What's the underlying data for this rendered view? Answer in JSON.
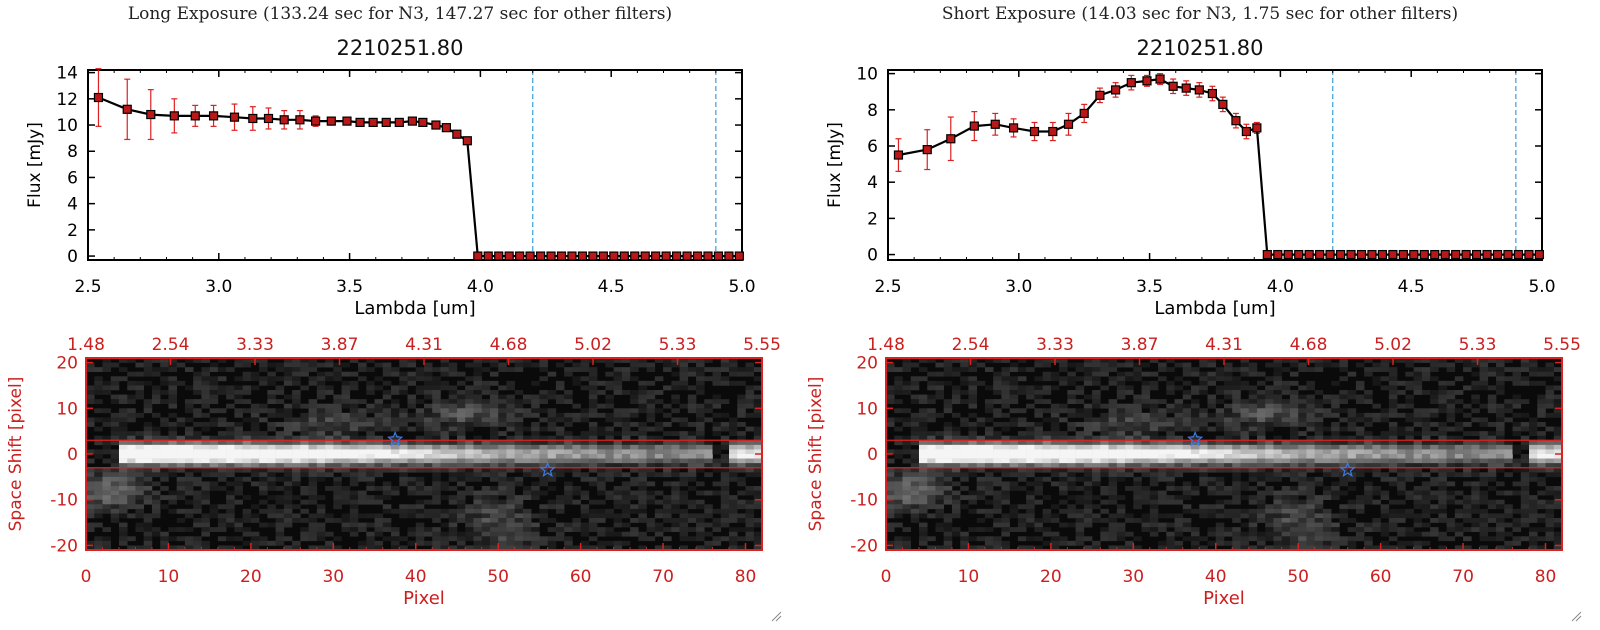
{
  "panels": [
    {
      "exposure_title": "Long Exposure (133.24 sec for N3, 147.27 sec for other filters)",
      "chart_title": "2210251.80"
    },
    {
      "exposure_title": "Short Exposure (14.03 sec for N3, 1.75 sec for other filters)",
      "chart_title": "2210251.80"
    }
  ],
  "colors": {
    "line": "#000000",
    "errorbar": "#dd2020",
    "marker": "#b81818",
    "vline": "#3aa0e0",
    "image_frame": "#dd2020",
    "image_axis_text": "#cc1f1f",
    "star": "#3c7be8"
  },
  "chart_data": [
    {
      "type": "line",
      "title": "2210251.80",
      "xlabel": "Lambda [um]",
      "ylabel": "Flux [mJy]",
      "xlim": [
        2.5,
        5.0
      ],
      "ylim": [
        -0.3,
        14.2
      ],
      "xticks": [
        2.5,
        3.0,
        3.5,
        4.0,
        4.5,
        5.0
      ],
      "xtick_labels": [
        "2.5",
        "3.0",
        "3.5",
        "4.0",
        "4.5",
        "5.0"
      ],
      "yticks": [
        0,
        2,
        4,
        6,
        8,
        10,
        12,
        14
      ],
      "ytick_labels": [
        "0",
        "2",
        "4",
        "6",
        "8",
        "10",
        "12",
        "14"
      ],
      "vlines": [
        4.2,
        4.9
      ],
      "hline_dashed": 0,
      "series": [
        {
          "x": [
            2.54,
            2.65,
            2.74,
            2.83,
            2.91,
            2.98,
            3.06,
            3.13,
            3.19,
            3.25,
            3.31,
            3.37,
            3.43,
            3.49,
            3.54,
            3.59,
            3.64,
            3.69,
            3.74,
            3.78,
            3.83,
            3.87,
            3.91,
            3.95,
            3.99,
            4.03,
            4.07,
            4.11,
            4.15,
            4.19,
            4.23,
            4.27,
            4.31,
            4.35,
            4.39,
            4.43,
            4.47,
            4.51,
            4.55,
            4.59,
            4.63,
            4.67,
            4.71,
            4.75,
            4.79,
            4.83,
            4.87,
            4.91,
            4.95,
            4.99
          ],
          "y": [
            12.1,
            11.2,
            10.8,
            10.7,
            10.7,
            10.7,
            10.6,
            10.5,
            10.5,
            10.4,
            10.4,
            10.3,
            10.3,
            10.3,
            10.2,
            10.2,
            10.2,
            10.2,
            10.3,
            10.2,
            10.0,
            9.8,
            9.3,
            8.8,
            0,
            0,
            0,
            0,
            0,
            0,
            0,
            0,
            0,
            0,
            0,
            0,
            0,
            0,
            0,
            0,
            0,
            0,
            0,
            0,
            0,
            0,
            0,
            0,
            0,
            0
          ],
          "yerr": [
            2.2,
            2.3,
            1.9,
            1.3,
            0.8,
            0.8,
            1.0,
            0.9,
            0.8,
            0.7,
            0.7,
            0.4,
            0.3,
            0.2,
            0.2,
            0.2,
            0.2,
            0.2,
            0.2,
            0.2,
            0.2,
            0.2,
            0.2,
            0.2,
            0,
            0,
            0,
            0,
            0,
            0,
            0,
            0,
            0,
            0,
            0,
            0,
            0,
            0,
            0,
            0,
            0,
            0,
            0,
            0,
            0,
            0,
            0,
            0,
            0,
            0
          ]
        }
      ]
    },
    {
      "type": "line",
      "title": "2210251.80",
      "xlabel": "Lambda [um]",
      "ylabel": "Flux [mJy]",
      "xlim": [
        2.5,
        5.0
      ],
      "ylim": [
        -0.3,
        10.2
      ],
      "xticks": [
        2.5,
        3.0,
        3.5,
        4.0,
        4.5,
        5.0
      ],
      "xtick_labels": [
        "2.5",
        "3.0",
        "3.5",
        "4.0",
        "4.5",
        "5.0"
      ],
      "yticks": [
        0,
        2,
        4,
        6,
        8,
        10
      ],
      "ytick_labels": [
        "0",
        "2",
        "4",
        "6",
        "8",
        "10"
      ],
      "vlines": [
        4.2,
        4.9
      ],
      "hline_dashed": 0,
      "series": [
        {
          "x": [
            2.54,
            2.65,
            2.74,
            2.83,
            2.91,
            2.98,
            3.06,
            3.13,
            3.19,
            3.25,
            3.31,
            3.37,
            3.43,
            3.49,
            3.54,
            3.59,
            3.64,
            3.69,
            3.74,
            3.78,
            3.83,
            3.87,
            3.91,
            3.95,
            3.99,
            4.03,
            4.07,
            4.11,
            4.15,
            4.19,
            4.23,
            4.27,
            4.31,
            4.35,
            4.39,
            4.43,
            4.47,
            4.51,
            4.55,
            4.59,
            4.63,
            4.67,
            4.71,
            4.75,
            4.79,
            4.83,
            4.87,
            4.91,
            4.95,
            4.99
          ],
          "y": [
            5.5,
            5.8,
            6.4,
            7.1,
            7.2,
            7.0,
            6.8,
            6.8,
            7.2,
            7.8,
            8.8,
            9.1,
            9.5,
            9.6,
            9.7,
            9.3,
            9.2,
            9.1,
            8.9,
            8.3,
            7.4,
            6.8,
            7.0,
            0,
            0,
            0,
            0,
            0,
            0,
            0,
            0,
            0,
            0,
            0,
            0,
            0,
            0,
            0,
            0,
            0,
            0,
            0,
            0,
            0,
            0,
            0,
            0,
            0,
            0,
            0
          ],
          "yerr": [
            0.9,
            1.1,
            1.2,
            0.8,
            0.6,
            0.5,
            0.5,
            0.5,
            0.6,
            0.5,
            0.4,
            0.4,
            0.4,
            0.3,
            0.3,
            0.4,
            0.4,
            0.4,
            0.4,
            0.4,
            0.4,
            0.4,
            0.3,
            0,
            0,
            0,
            0,
            0,
            0,
            0,
            0,
            0,
            0,
            0,
            0,
            0,
            0,
            0,
            0,
            0,
            0,
            0,
            0,
            0,
            0,
            0,
            0,
            0,
            0,
            0
          ]
        }
      ]
    },
    {
      "type": "heatmap",
      "xlabel": "Pixel",
      "ylabel": "Space Shift [pixel]",
      "xlim": [
        0,
        82
      ],
      "ylim": [
        -21,
        21
      ],
      "xticks": [
        0,
        10,
        20,
        30,
        40,
        50,
        60,
        70,
        80
      ],
      "xtick_labels": [
        "0",
        "10",
        "20",
        "30",
        "40",
        "50",
        "60",
        "70",
        "80"
      ],
      "yticks": [
        -20,
        -10,
        0,
        10,
        20
      ],
      "ytick_labels": [
        "-20",
        "-10",
        "0",
        "10",
        "20"
      ],
      "top_tick_labels": [
        "1.48",
        "2.54",
        "3.33",
        "3.87",
        "4.31",
        "4.68",
        "5.02",
        "5.33",
        "5.55"
      ],
      "aperture_lines": [
        3,
        -3
      ],
      "stars": [
        [
          37.5,
          3.2
        ],
        [
          56.0,
          -3.5
        ]
      ]
    },
    {
      "type": "heatmap",
      "xlabel": "Pixel",
      "ylabel": "Space Shift [pixel]",
      "xlim": [
        0,
        82
      ],
      "ylim": [
        -21,
        21
      ],
      "xticks": [
        0,
        10,
        20,
        30,
        40,
        50,
        60,
        70,
        80
      ],
      "xtick_labels": [
        "0",
        "10",
        "20",
        "30",
        "40",
        "50",
        "60",
        "70",
        "80"
      ],
      "yticks": [
        -20,
        -10,
        0,
        10,
        20
      ],
      "ytick_labels": [
        "-20",
        "-10",
        "0",
        "10",
        "20"
      ],
      "top_tick_labels": [
        "1.48",
        "2.54",
        "3.33",
        "3.87",
        "4.31",
        "4.68",
        "5.02",
        "5.33",
        "5.55"
      ],
      "aperture_lines": [
        3,
        -3
      ],
      "stars": [
        [
          37.5,
          3.2
        ],
        [
          56.0,
          -3.5
        ]
      ]
    }
  ]
}
